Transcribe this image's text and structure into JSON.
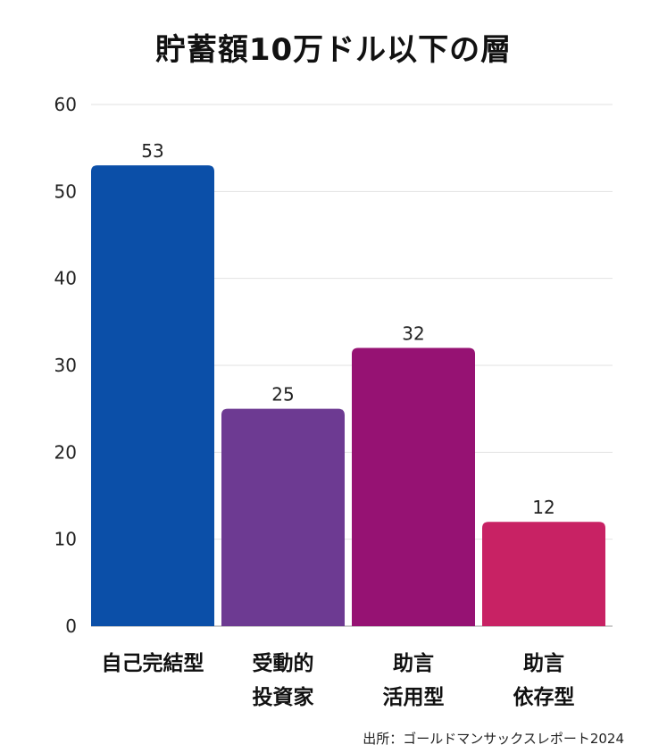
{
  "title": "貯蓄額10万ドル以下の層",
  "source": "出所：ゴールドマンサックスレポート2024",
  "chart_data": {
    "type": "bar",
    "title": "貯蓄額10万ドル以下の層",
    "xlabel": "",
    "ylabel": "",
    "ylim": [
      0,
      60
    ],
    "yticks": [
      0,
      10,
      20,
      30,
      40,
      50,
      60
    ],
    "grid": true,
    "categories": [
      [
        "自己完結型"
      ],
      [
        "受動的",
        "投資家"
      ],
      [
        "助言",
        "活用型"
      ],
      [
        "助言",
        "依存型"
      ]
    ],
    "values": [
      53,
      25,
      32,
      12
    ],
    "colors": [
      "#0b4fa8",
      "#6d3a92",
      "#961273",
      "#c82264"
    ]
  }
}
